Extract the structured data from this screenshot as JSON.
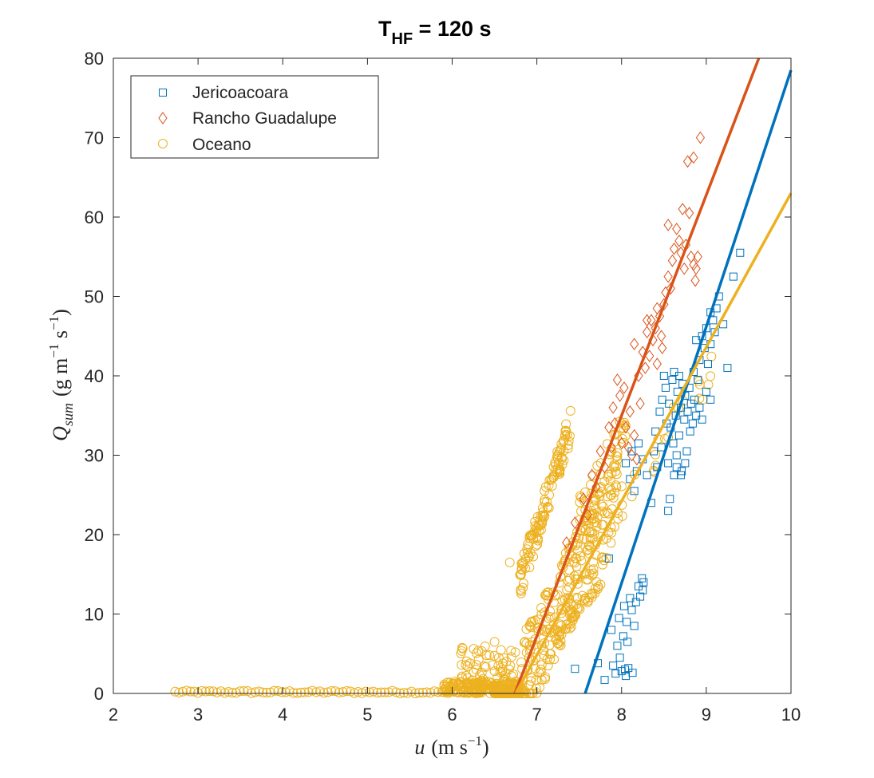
{
  "chart_data": {
    "type": "scatter",
    "title": "T",
    "title_sub": "HF",
    "title_rest": " = 120 s",
    "xlabel": {
      "var": "u",
      "units": "(m s",
      "exp": "−1",
      "close": ")"
    },
    "ylabel": {
      "var": "Q",
      "sub": "sum",
      "units": "(g m",
      "exp1": "−1",
      "mid": " s",
      "exp2": "−1",
      "close": ")"
    },
    "xlim": [
      2,
      10
    ],
    "ylim": [
      0,
      80
    ],
    "xticks": [
      2,
      3,
      4,
      5,
      6,
      7,
      8,
      9,
      10
    ],
    "yticks": [
      0,
      10,
      20,
      30,
      40,
      50,
      60,
      70,
      80
    ],
    "grid": false,
    "legend_position": "top-left",
    "series": [
      {
        "name": "Jericoacoara",
        "marker": "square",
        "color": "#0072BD",
        "points": [
          [
            7.45,
            3.1
          ],
          [
            7.72,
            3.8
          ],
          [
            7.8,
            1.7
          ],
          [
            7.85,
            17.0
          ],
          [
            7.88,
            8.0
          ],
          [
            7.9,
            3.5
          ],
          [
            7.93,
            2.5
          ],
          [
            7.95,
            6.0
          ],
          [
            7.97,
            9.5
          ],
          [
            7.98,
            4.5
          ],
          [
            8.0,
            2.8
          ],
          [
            8.02,
            7.2
          ],
          [
            8.03,
            11.0
          ],
          [
            8.04,
            3.0
          ],
          [
            8.05,
            2.2
          ],
          [
            8.06,
            9.0
          ],
          [
            8.07,
            6.5
          ],
          [
            8.08,
            3.2
          ],
          [
            8.1,
            12.0
          ],
          [
            8.12,
            10.5
          ],
          [
            8.13,
            2.6
          ],
          [
            8.15,
            8.5
          ],
          [
            8.17,
            11.5
          ],
          [
            8.2,
            13.5
          ],
          [
            8.22,
            12.2
          ],
          [
            8.24,
            14.5
          ],
          [
            8.25,
            13.0
          ],
          [
            8.26,
            14.0
          ],
          [
            8.05,
            29.0
          ],
          [
            8.1,
            27.0
          ],
          [
            8.12,
            30.5
          ],
          [
            8.15,
            25.5
          ],
          [
            8.18,
            28.0
          ],
          [
            8.2,
            31.5
          ],
          [
            8.25,
            29.5
          ],
          [
            8.3,
            27.5
          ],
          [
            8.35,
            24.0
          ],
          [
            8.38,
            30.5
          ],
          [
            8.4,
            33.0
          ],
          [
            8.42,
            28.5
          ],
          [
            8.45,
            35.5
          ],
          [
            8.47,
            31.0
          ],
          [
            8.48,
            37.0
          ],
          [
            8.5,
            40.0
          ],
          [
            8.52,
            38.5
          ],
          [
            8.53,
            34.0
          ],
          [
            8.55,
            29.0
          ],
          [
            8.56,
            36.5
          ],
          [
            8.58,
            33.5
          ],
          [
            8.6,
            39.5
          ],
          [
            8.61,
            31.5
          ],
          [
            8.62,
            27.5
          ],
          [
            8.64,
            35.0
          ],
          [
            8.65,
            30.0
          ],
          [
            8.66,
            38.0
          ],
          [
            8.68,
            32.5
          ],
          [
            8.7,
            36.0
          ],
          [
            8.71,
            28.0
          ],
          [
            8.72,
            39.0
          ],
          [
            8.74,
            34.5
          ],
          [
            8.75,
            37.5
          ],
          [
            8.77,
            30.5
          ],
          [
            8.78,
            35.5
          ],
          [
            8.8,
            38.5
          ],
          [
            8.81,
            33.0
          ],
          [
            8.82,
            36.5
          ],
          [
            8.84,
            34.0
          ],
          [
            8.86,
            37.0
          ],
          [
            8.88,
            35.0
          ],
          [
            8.9,
            39.5
          ],
          [
            8.55,
            23.0
          ],
          [
            8.57,
            24.5
          ],
          [
            8.62,
            40.5
          ],
          [
            8.68,
            40.0
          ],
          [
            8.85,
            40.5
          ],
          [
            8.88,
            44.5
          ],
          [
            8.92,
            42.0
          ],
          [
            8.95,
            45.0
          ],
          [
            8.98,
            43.5
          ],
          [
            9.0,
            46.0
          ],
          [
            9.02,
            41.5
          ],
          [
            9.05,
            44.0
          ],
          [
            9.08,
            47.0
          ],
          [
            9.1,
            45.5
          ],
          [
            9.12,
            48.5
          ],
          [
            9.15,
            50.0
          ],
          [
            9.2,
            46.5
          ],
          [
            9.25,
            41.0
          ],
          [
            9.32,
            52.5
          ],
          [
            9.4,
            55.5
          ],
          [
            9.05,
            48.0
          ],
          [
            8.92,
            36.0
          ],
          [
            8.95,
            34.5
          ],
          [
            9.0,
            38.0
          ],
          [
            9.05,
            37.0
          ],
          [
            8.7,
            27.5
          ],
          [
            8.75,
            29.0
          ],
          [
            8.65,
            28.5
          ]
        ],
        "fit": {
          "x0": 7.57,
          "x1": 10.0,
          "y1": 78.5
        }
      },
      {
        "name": "Rancho Guadalupe",
        "marker": "diamond",
        "color": "#D95319",
        "points": [
          [
            7.35,
            19.0
          ],
          [
            7.45,
            21.5
          ],
          [
            7.55,
            24.5
          ],
          [
            7.6,
            22.5
          ],
          [
            7.65,
            27.5
          ],
          [
            7.7,
            26.0
          ],
          [
            7.75,
            30.5
          ],
          [
            7.8,
            28.5
          ],
          [
            7.85,
            33.5
          ],
          [
            7.88,
            31.0
          ],
          [
            7.9,
            36.0
          ],
          [
            7.92,
            34.0
          ],
          [
            7.95,
            39.5
          ],
          [
            7.98,
            37.5
          ],
          [
            8.0,
            31.5
          ],
          [
            8.03,
            38.5
          ],
          [
            8.05,
            33.5
          ],
          [
            8.08,
            31.0
          ],
          [
            8.1,
            35.5
          ],
          [
            8.12,
            30.0
          ],
          [
            8.15,
            32.5
          ],
          [
            8.18,
            29.5
          ],
          [
            8.2,
            40.0
          ],
          [
            8.22,
            36.5
          ],
          [
            8.25,
            43.0
          ],
          [
            8.28,
            41.0
          ],
          [
            8.3,
            45.5
          ],
          [
            8.33,
            42.5
          ],
          [
            8.35,
            47.0
          ],
          [
            8.37,
            44.5
          ],
          [
            8.4,
            46.0
          ],
          [
            8.42,
            48.5
          ],
          [
            8.45,
            47.5
          ],
          [
            8.47,
            45.0
          ],
          [
            8.5,
            49.0
          ],
          [
            8.52,
            50.5
          ],
          [
            8.55,
            52.5
          ],
          [
            8.58,
            51.0
          ],
          [
            8.6,
            54.5
          ],
          [
            8.62,
            56.0
          ],
          [
            8.65,
            58.5
          ],
          [
            8.68,
            57.0
          ],
          [
            8.7,
            55.5
          ],
          [
            8.72,
            61.0
          ],
          [
            8.74,
            53.5
          ],
          [
            8.76,
            56.5
          ],
          [
            8.8,
            60.5
          ],
          [
            8.82,
            55.0
          ],
          [
            8.85,
            54.0
          ],
          [
            8.87,
            52.0
          ],
          [
            8.88,
            53.5
          ],
          [
            8.9,
            55.0
          ],
          [
            8.55,
            59.0
          ],
          [
            8.78,
            67.0
          ],
          [
            8.85,
            67.5
          ],
          [
            8.93,
            70.0
          ],
          [
            8.3,
            47.0
          ],
          [
            8.15,
            44.0
          ],
          [
            8.42,
            41.5
          ],
          [
            8.48,
            43.5
          ]
        ],
        "fit": {
          "x0": 6.74,
          "x1": 9.62,
          "y1": 80.0
        }
      },
      {
        "name": "Oceano",
        "marker": "circle",
        "color": "#EDB120",
        "scatter_fn": "oceano",
        "fit": {
          "x0": 6.75,
          "x1": 10.0,
          "y1": 63.0
        }
      }
    ]
  }
}
